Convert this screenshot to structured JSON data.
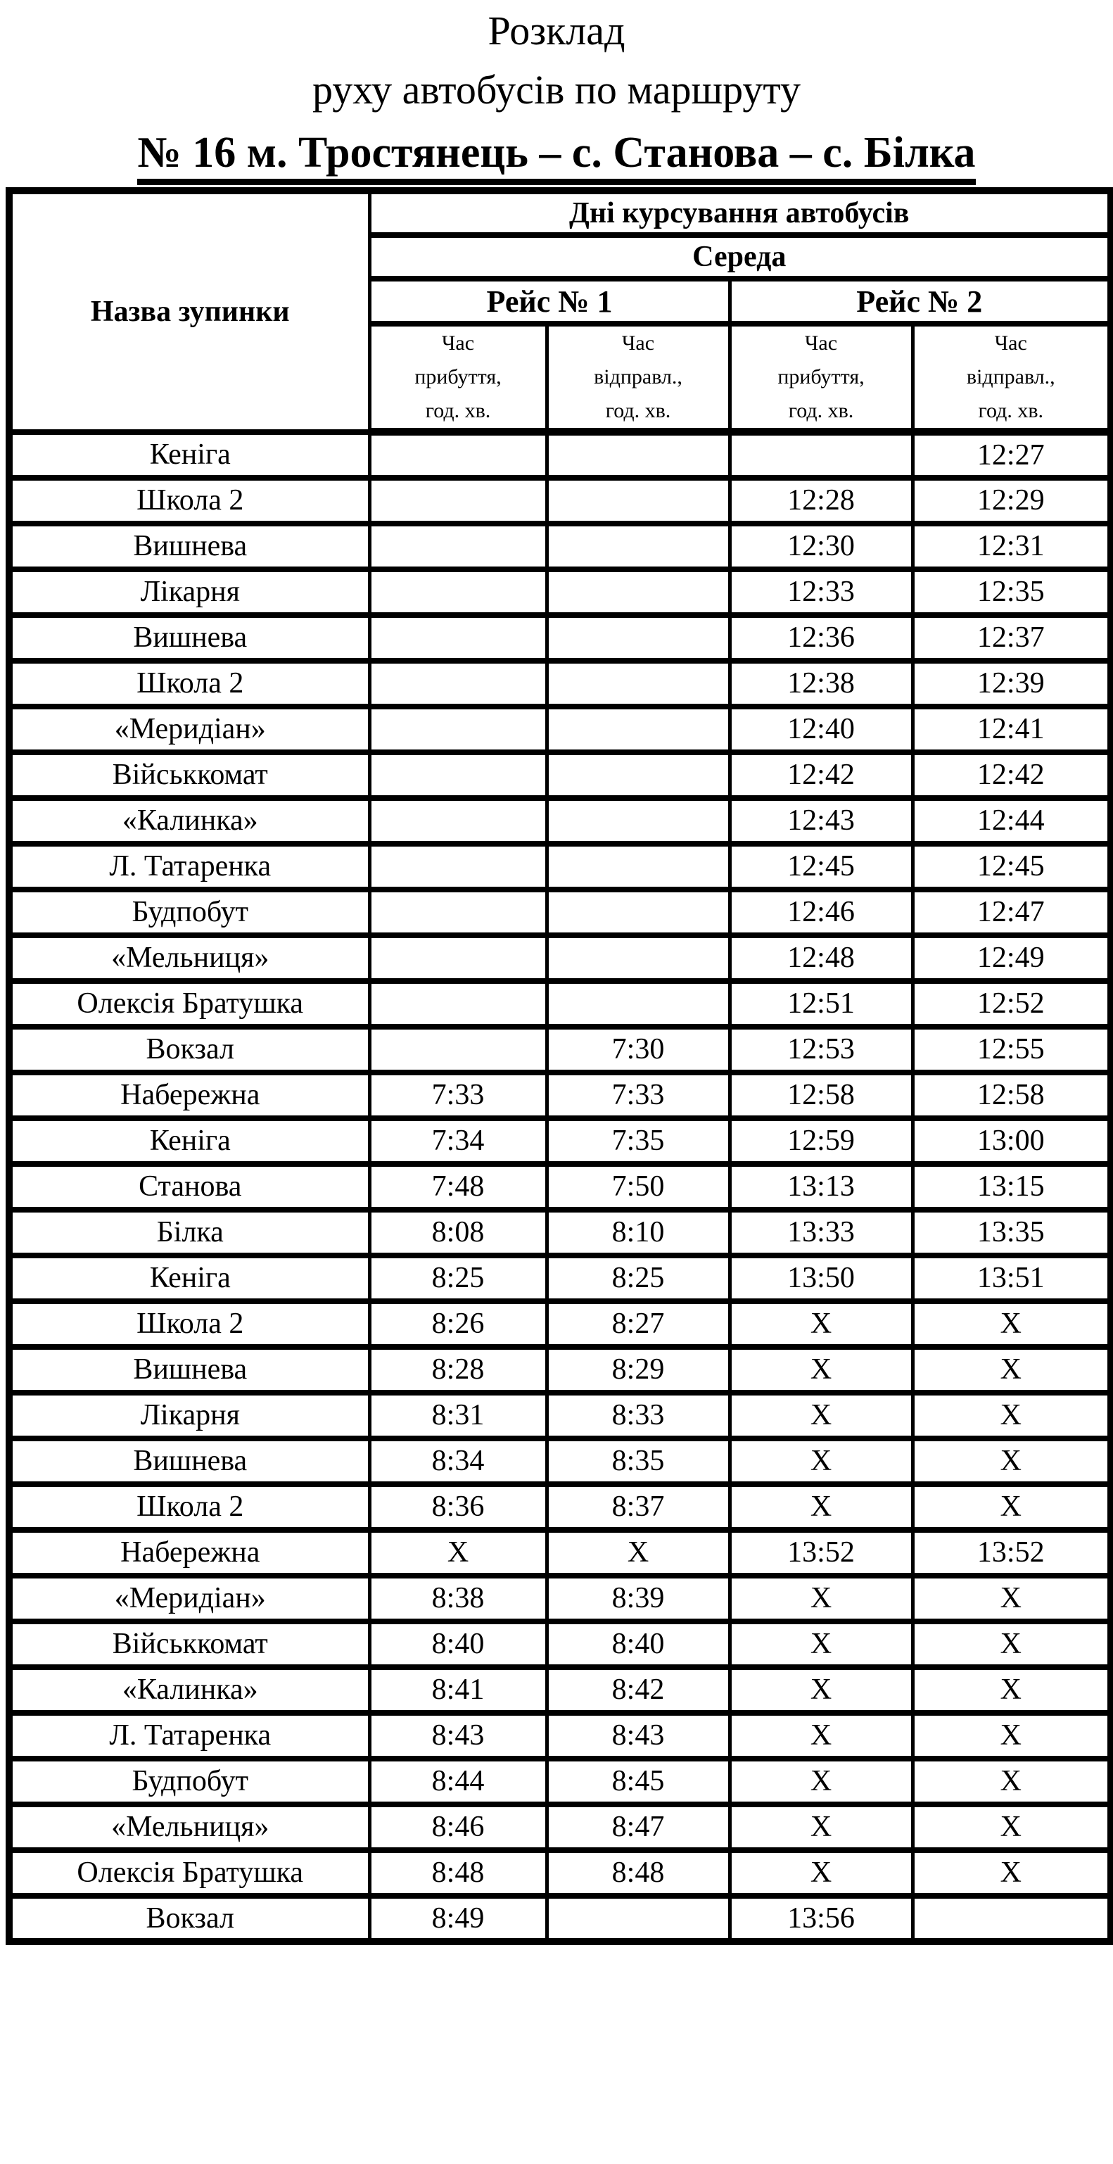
{
  "title": {
    "line1": "Розклад",
    "line2": "руху автобусів по маршруту",
    "route": "№ 16 м. Тростянець – с. Станова – с. Білка"
  },
  "table": {
    "stop_col_header": "Назва зупинки",
    "days_header": "Дні курсування автобусів",
    "day": "Середа",
    "trip1": "Рейс № 1",
    "trip2": "Рейс № 2",
    "time_headers": {
      "arrival": "Час\nприбуття,\nгод. хв.",
      "departure": "Час\nвідправл.,\nгод. хв."
    },
    "no_service_mark": "X",
    "colors": {
      "trip2_bg": "#f0f0f0",
      "no_service_bg": "#595959",
      "border": "#000000"
    },
    "rows": [
      {
        "stop": "Кеніга",
        "r1_arr": "",
        "r1_dep": "",
        "r2_arr": "",
        "r2_dep": "12:27"
      },
      {
        "stop": "Школа 2",
        "r1_arr": "",
        "r1_dep": "",
        "r2_arr": "12:28",
        "r2_dep": "12:29"
      },
      {
        "stop": "Вишнева",
        "r1_arr": "",
        "r1_dep": "",
        "r2_arr": "12:30",
        "r2_dep": "12:31"
      },
      {
        "stop": "Лікарня",
        "r1_arr": "",
        "r1_dep": "",
        "r2_arr": "12:33",
        "r2_dep": "12:35"
      },
      {
        "stop": "Вишнева",
        "r1_arr": "",
        "r1_dep": "",
        "r2_arr": "12:36",
        "r2_dep": "12:37"
      },
      {
        "stop": "Школа 2",
        "r1_arr": "",
        "r1_dep": "",
        "r2_arr": "12:38",
        "r2_dep": "12:39"
      },
      {
        "stop": "«Меридіан»",
        "r1_arr": "",
        "r1_dep": "",
        "r2_arr": "12:40",
        "r2_dep": "12:41"
      },
      {
        "stop": "Військкомат",
        "r1_arr": "",
        "r1_dep": "",
        "r2_arr": "12:42",
        "r2_dep": "12:42"
      },
      {
        "stop": "«Калинка»",
        "r1_arr": "",
        "r1_dep": "",
        "r2_arr": "12:43",
        "r2_dep": "12:44"
      },
      {
        "stop": "Л. Татаренка",
        "r1_arr": "",
        "r1_dep": "",
        "r2_arr": "12:45",
        "r2_dep": "12:45"
      },
      {
        "stop": "Будпобут",
        "r1_arr": "",
        "r1_dep": "",
        "r2_arr": "12:46",
        "r2_dep": "12:47"
      },
      {
        "stop": "«Мельниця»",
        "r1_arr": "",
        "r1_dep": "",
        "r2_arr": "12:48",
        "r2_dep": "12:49"
      },
      {
        "stop": "Олексія Братушка",
        "r1_arr": "",
        "r1_dep": "",
        "r2_arr": "12:51",
        "r2_dep": "12:52"
      },
      {
        "stop": "Вокзал",
        "r1_arr": "",
        "r1_dep": "7:30",
        "r2_arr": "12:53",
        "r2_dep": "12:55"
      },
      {
        "stop": "Набережна",
        "r1_arr": "7:33",
        "r1_dep": "7:33",
        "r2_arr": "12:58",
        "r2_dep": "12:58"
      },
      {
        "stop": "Кеніга",
        "r1_arr": "7:34",
        "r1_dep": "7:35",
        "r2_arr": "12:59",
        "r2_dep": "13:00"
      },
      {
        "stop": "Станова",
        "r1_arr": "7:48",
        "r1_dep": "7:50",
        "r2_arr": "13:13",
        "r2_dep": "13:15"
      },
      {
        "stop": "Білка",
        "r1_arr": "8:08",
        "r1_dep": "8:10",
        "r2_arr": "13:33",
        "r2_dep": "13:35"
      },
      {
        "stop": "Кеніга",
        "r1_arr": "8:25",
        "r1_dep": "8:25",
        "r2_arr": "13:50",
        "r2_dep": "13:51"
      },
      {
        "stop": "Школа 2",
        "r1_arr": "8:26",
        "r1_dep": "8:27",
        "r2_arr": "X",
        "r2_dep": "X"
      },
      {
        "stop": "Вишнева",
        "r1_arr": "8:28",
        "r1_dep": "8:29",
        "r2_arr": "X",
        "r2_dep": "X"
      },
      {
        "stop": "Лікарня",
        "r1_arr": "8:31",
        "r1_dep": "8:33",
        "r2_arr": "X",
        "r2_dep": "X"
      },
      {
        "stop": "Вишнева",
        "r1_arr": "8:34",
        "r1_dep": "8:35",
        "r2_arr": "X",
        "r2_dep": "X"
      },
      {
        "stop": "Школа 2",
        "r1_arr": "8:36",
        "r1_dep": "8:37",
        "r2_arr": "X",
        "r2_dep": "X"
      },
      {
        "stop": "Набережна",
        "r1_arr": "X",
        "r1_dep": "X",
        "r2_arr": "13:52",
        "r2_dep": "13:52"
      },
      {
        "stop": "«Меридіан»",
        "r1_arr": "8:38",
        "r1_dep": "8:39",
        "r2_arr": "X",
        "r2_dep": "X"
      },
      {
        "stop": "Військкомат",
        "r1_arr": "8:40",
        "r1_dep": "8:40",
        "r2_arr": "X",
        "r2_dep": "X"
      },
      {
        "stop": "«Калинка»",
        "r1_arr": "8:41",
        "r1_dep": "8:42",
        "r2_arr": "X",
        "r2_dep": "X"
      },
      {
        "stop": "Л. Татаренка",
        "r1_arr": "8:43",
        "r1_dep": "8:43",
        "r2_arr": "X",
        "r2_dep": "X"
      },
      {
        "stop": "Будпобут",
        "r1_arr": "8:44",
        "r1_dep": "8:45",
        "r2_arr": "X",
        "r2_dep": "X"
      },
      {
        "stop": "«Мельниця»",
        "r1_arr": "8:46",
        "r1_dep": "8:47",
        "r2_arr": "X",
        "r2_dep": "X"
      },
      {
        "stop": "Олексія Братушка",
        "r1_arr": "8:48",
        "r1_dep": "8:48",
        "r2_arr": "X",
        "r2_dep": "X"
      },
      {
        "stop": "Вокзал",
        "r1_arr": "8:49",
        "r1_dep": "",
        "r2_arr": "13:56",
        "r2_dep": ""
      }
    ]
  }
}
